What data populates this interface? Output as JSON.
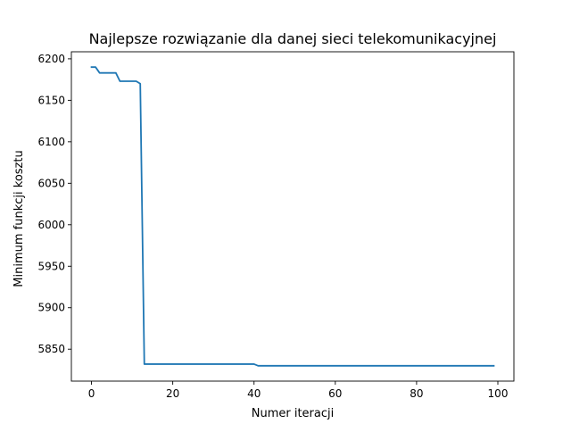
{
  "chart_data": {
    "type": "line",
    "title": "Najlepsze rozwiązanie dla danej sieci telekomunikacyjnej",
    "xlabel": "Numer iteracji",
    "ylabel": "Minimum funkcji kosztu",
    "xlim": [
      -4.95,
      103.95
    ],
    "ylim": [
      5811.5,
      6208.5
    ],
    "xticks": [
      0,
      20,
      40,
      60,
      80,
      100
    ],
    "yticks": [
      5850,
      5900,
      5950,
      6000,
      6050,
      6100,
      6150,
      6200
    ],
    "grid": false,
    "series": [
      {
        "color": "#1f77b4",
        "x": [
          0,
          1,
          2,
          3,
          4,
          5,
          6,
          7,
          8,
          9,
          10,
          11,
          12,
          13,
          14,
          20,
          30,
          39,
          40,
          41,
          50,
          60,
          70,
          80,
          90,
          99
        ],
        "y": [
          6190,
          6190,
          6183,
          6183,
          6183,
          6183,
          6183,
          6173,
          6173,
          6173,
          6173,
          6173,
          6170,
          5832,
          5832,
          5832,
          5832,
          5832,
          5832,
          5830,
          5830,
          5830,
          5830,
          5830,
          5830,
          5830
        ]
      }
    ]
  }
}
